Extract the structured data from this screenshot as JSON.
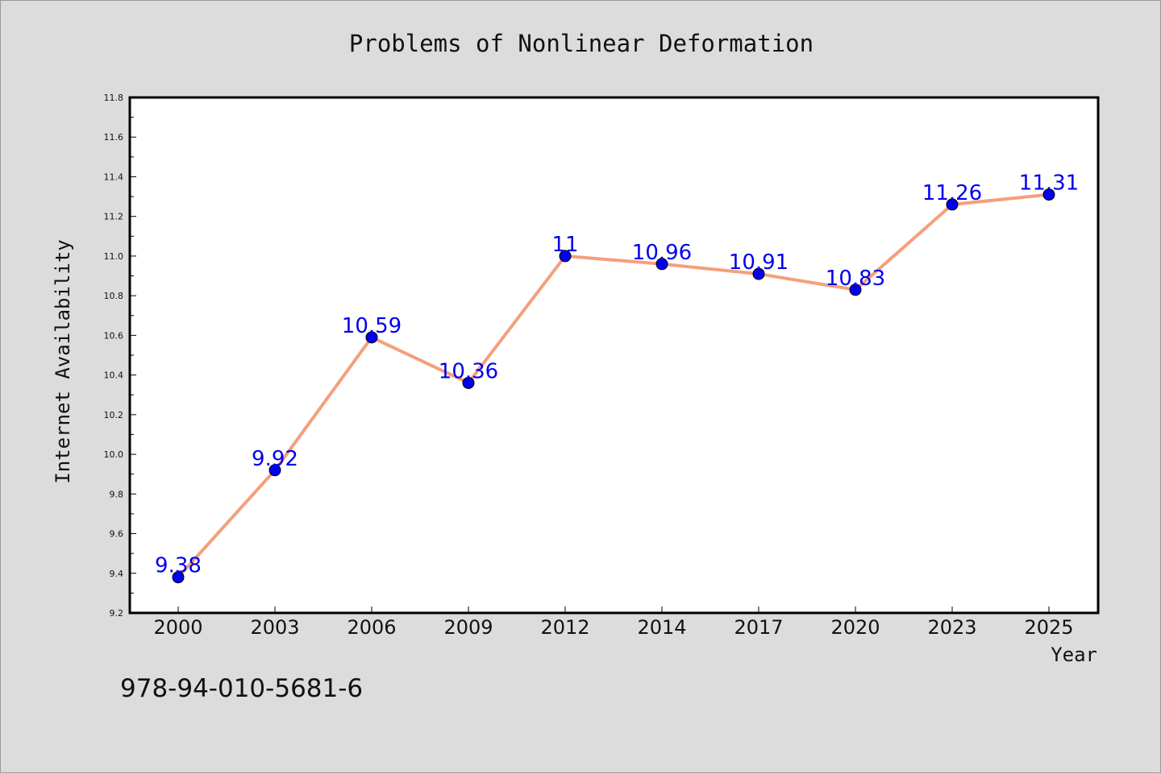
{
  "chart_data": {
    "type": "line",
    "title": "Problems of Nonlinear Deformation",
    "xlabel": "Year",
    "ylabel": "Internet Availability",
    "categories": [
      "2000",
      "2003",
      "2006",
      "2009",
      "2012",
      "2014",
      "2017",
      "2020",
      "2023",
      "2025"
    ],
    "series": [
      {
        "values": [
          9.38,
          9.92,
          10.59,
          10.36,
          11,
          10.96,
          10.91,
          10.83,
          11.26,
          11.31
        ],
        "data_labels": [
          "9.38",
          "9.92",
          "10.59",
          "10.36",
          "11",
          "10.96",
          "10.91",
          "10.83",
          "11.26",
          "11.31"
        ],
        "line_color": "#f4a07c",
        "marker_color": "#0000ee"
      }
    ],
    "ylim": [
      9.2,
      11.8
    ],
    "yticks": [
      "9.2",
      "9.4",
      "9.6",
      "9.8",
      "10.0",
      "10.2",
      "10.4",
      "10.6",
      "10.8",
      "11.0",
      "11.2",
      "11.4",
      "11.6",
      "11.8"
    ],
    "grid": false,
    "legend": "none"
  },
  "footer": {
    "isbn": "978-94-010-5681-6"
  },
  "colors": {
    "background": "#dcdcdc",
    "plot_background": "#ffffff",
    "line": "#f4a07c",
    "marker": "#0000ee",
    "label": "#0000ee"
  }
}
